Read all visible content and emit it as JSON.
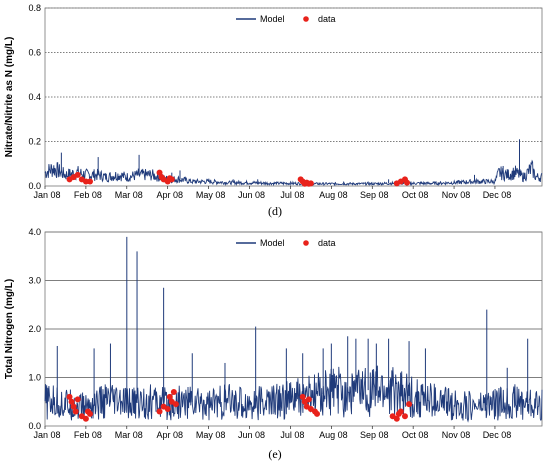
{
  "colors": {
    "model": "#1f3a7a",
    "data": "#e8221b",
    "grid": "#000000"
  },
  "chart_data": [
    {
      "type": "line",
      "caption": "(d)",
      "ylabel": "Nitrate/Nitrite  as N (mg/L)",
      "xlabel": "",
      "x_ticks": [
        "Jan 08",
        "Feb 08",
        "Mar 08",
        "Apr 08",
        "May 08",
        "Jun 08",
        "Jul 08",
        "Aug 08",
        "Sep 08",
        "Oct 08",
        "Nov 08",
        "Dec 08"
      ],
      "y_ticks": [
        "0.0",
        "0.2",
        "0.4",
        "0.6",
        "0.8"
      ],
      "ylim": [
        0,
        0.8
      ],
      "grid": "horizontal dotted",
      "legend": {
        "placement": "top-center",
        "entries": [
          "Model",
          "data"
        ]
      },
      "series": [
        {
          "name": "Model",
          "kind": "line",
          "x_month": [
            0,
            0.2,
            0.5,
            0.8,
            1,
            1.3,
            1.5,
            1.8,
            2,
            2.3,
            2.6,
            2.8,
            3,
            3.3,
            3.6,
            4,
            4.5,
            5,
            5.5,
            6,
            6.5,
            7,
            7.5,
            8,
            8.5,
            9,
            9.5,
            10,
            10.5,
            10.8,
            11,
            11.1,
            11.3,
            11.5,
            11.7,
            11.9,
            12
          ],
          "y": [
            0.06,
            0.08,
            0.05,
            0.06,
            0.05,
            0.05,
            0.04,
            0.05,
            0.04,
            0.05,
            0.05,
            0.04,
            0.03,
            0.03,
            0.02,
            0.02,
            0.015,
            0.015,
            0.012,
            0.012,
            0.01,
            0.01,
            0.01,
            0.01,
            0.012,
            0.012,
            0.012,
            0.015,
            0.02,
            0.02,
            0.02,
            0.06,
            0.05,
            0.06,
            0.04,
            0.08,
            0.04
          ],
          "spikes_month": [
            0.4,
            1.3,
            2.3,
            3.1,
            3.3,
            4.6,
            5.2,
            6.3,
            7.3,
            7.9,
            8.4,
            9.2,
            10.5,
            11.2,
            11.6
          ],
          "spikes_y": [
            0.15,
            0.13,
            0.14,
            0.06,
            0.07,
            0.03,
            0.03,
            0.02,
            0.02,
            0.02,
            0.03,
            0.02,
            0.05,
            0.09,
            0.21
          ]
        },
        {
          "name": "data",
          "kind": "scatter",
          "x_month": [
            0.6,
            0.7,
            0.8,
            0.9,
            1.0,
            1.1,
            2.8,
            2.85,
            2.9,
            3.0,
            3.05,
            3.1,
            6.25,
            6.3,
            6.35,
            6.4,
            6.45,
            6.5,
            8.6,
            8.7,
            8.8,
            8.85
          ],
          "y": [
            0.03,
            0.04,
            0.05,
            0.03,
            0.02,
            0.02,
            0.06,
            0.04,
            0.03,
            0.02,
            0.035,
            0.03,
            0.03,
            0.02,
            0.01,
            0.015,
            0.01,
            0.012,
            0.012,
            0.02,
            0.03,
            0.015
          ]
        }
      ]
    },
    {
      "type": "line",
      "caption": "(e)",
      "ylabel": "Total Nitrogen (mg/L)",
      "xlabel": "",
      "x_ticks": [
        "Jan 08",
        "Feb 08",
        "Mar 08",
        "Apr 08",
        "May 08",
        "Jun 08",
        "Jul 08",
        "Aug 08",
        "Sep 08",
        "Oct 08",
        "Nov 08",
        "Dec 08"
      ],
      "y_ticks": [
        "0.0",
        "1.0",
        "2.0",
        "3.0",
        "4.0"
      ],
      "ylim": [
        0,
        4.0
      ],
      "grid": "horizontal solid",
      "legend": {
        "placement": "top-center",
        "entries": [
          "Model",
          "data"
        ]
      },
      "series": [
        {
          "name": "Model",
          "kind": "line",
          "x_month": [
            0,
            0.5,
            1,
            1.5,
            2,
            2.5,
            3,
            3.5,
            4,
            4.5,
            5,
            5.5,
            6,
            6.5,
            7,
            7.5,
            8,
            8.5,
            9,
            9.5,
            10,
            10.5,
            11,
            11.5,
            12
          ],
          "y": [
            0.5,
            0.45,
            0.4,
            0.5,
            0.45,
            0.5,
            0.45,
            0.5,
            0.45,
            0.5,
            0.45,
            0.5,
            0.55,
            0.6,
            0.7,
            0.7,
            0.75,
            0.7,
            0.6,
            0.5,
            0.45,
            0.4,
            0.45,
            0.5,
            0.45
          ],
          "spikes_month": [
            0.3,
            1.2,
            1.6,
            2.0,
            2.25,
            2.9,
            3.6,
            4.4,
            5.15,
            5.9,
            6.3,
            6.8,
            7.0,
            7.4,
            7.6,
            7.9,
            8.1,
            8.4,
            8.9,
            9.3,
            10.8,
            11.3,
            11.8
          ],
          "spikes_y": [
            1.65,
            1.6,
            1.7,
            3.9,
            3.6,
            2.85,
            1.5,
            1.3,
            2.05,
            1.6,
            1.5,
            1.6,
            1.7,
            1.85,
            1.8,
            1.8,
            1.7,
            1.8,
            1.75,
            1.6,
            2.4,
            1.2,
            1.8
          ]
        },
        {
          "name": "data",
          "kind": "scatter",
          "x_month": [
            0.6,
            0.65,
            0.7,
            0.75,
            0.8,
            0.9,
            1.0,
            1.05,
            1.1,
            2.8,
            2.9,
            3.0,
            3.05,
            3.1,
            3.15,
            3.2,
            6.3,
            6.35,
            6.4,
            6.45,
            6.5,
            6.6,
            6.65,
            8.5,
            8.6,
            8.65,
            8.7,
            8.8,
            8.9
          ],
          "y": [
            0.6,
            0.5,
            0.4,
            0.3,
            0.55,
            0.2,
            0.15,
            0.3,
            0.25,
            0.3,
            0.4,
            0.35,
            0.6,
            0.5,
            0.7,
            0.45,
            0.6,
            0.5,
            0.4,
            0.55,
            0.35,
            0.3,
            0.25,
            0.2,
            0.15,
            0.25,
            0.3,
            0.2,
            0.45
          ]
        }
      ]
    }
  ]
}
